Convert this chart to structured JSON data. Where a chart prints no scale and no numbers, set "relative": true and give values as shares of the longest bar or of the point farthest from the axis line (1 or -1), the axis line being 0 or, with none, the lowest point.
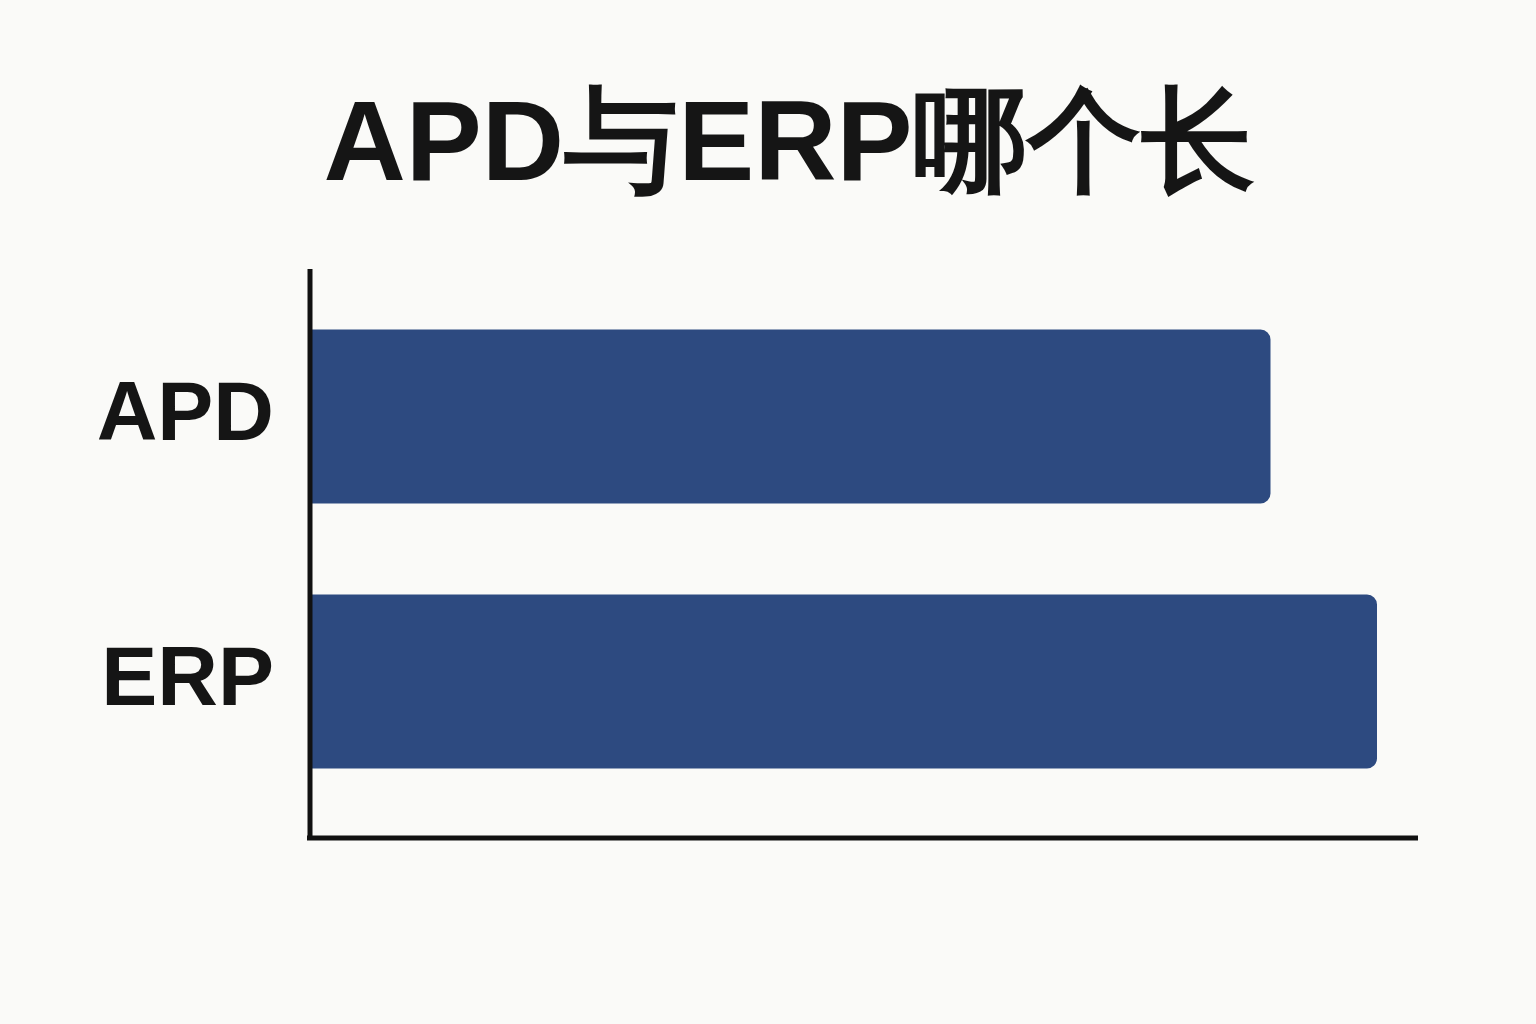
{
  "chart_data": {
    "type": "bar",
    "title": "APD与ERP哪个长",
    "categories": [
      "APD",
      "ERP"
    ],
    "values": [
      0.9,
      1
    ],
    "color": "#2d4a80",
    "orientation": "horizontal",
    "relative": true
  }
}
